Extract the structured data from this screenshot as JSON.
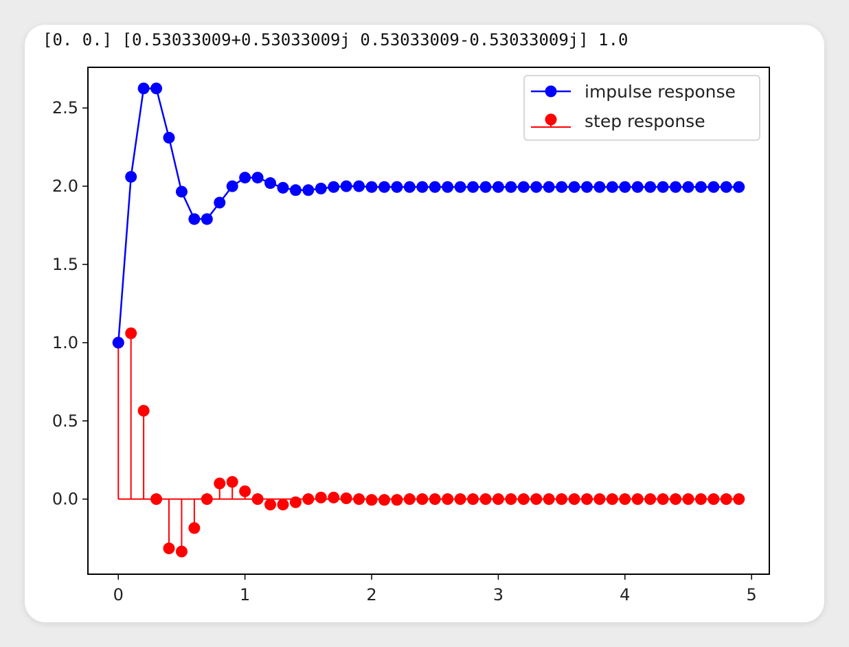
{
  "output_text": "[0. 0.] [0.53033009+0.53033009j 0.53033009-0.53033009j] 1.0",
  "chart_data": {
    "type": "line",
    "title": "",
    "xlabel": "",
    "ylabel": "",
    "xlim": [
      -0.24,
      5.14
    ],
    "ylim": [
      -0.48,
      2.76
    ],
    "grid": false,
    "legend_position": "top-right",
    "xticks": [
      0,
      1,
      2,
      3,
      4,
      5
    ],
    "xtick_labels": [
      "0",
      "1",
      "2",
      "3",
      "4",
      "5"
    ],
    "yticks": [
      0.0,
      0.5,
      1.0,
      1.5,
      2.0,
      2.5
    ],
    "ytick_labels": [
      "0.0",
      "0.5",
      "1.0",
      "1.5",
      "2.0",
      "2.5"
    ],
    "series": [
      {
        "name": "impulse response",
        "style": "line-marker",
        "color": "#0000ff",
        "x": [
          0.0,
          0.1,
          0.2,
          0.3,
          0.4,
          0.5,
          0.6,
          0.7,
          0.8,
          0.9,
          1.0,
          1.1,
          1.2,
          1.3,
          1.4,
          1.5,
          1.6,
          1.7,
          1.8,
          1.9,
          2.0,
          2.1,
          2.2,
          2.3,
          2.4,
          2.5,
          2.6,
          2.7,
          2.8,
          2.9,
          3.0,
          3.1,
          3.2,
          3.3,
          3.4,
          3.5,
          3.6,
          3.7,
          3.8,
          3.9,
          4.0,
          4.1,
          4.2,
          4.3,
          4.4,
          4.5,
          4.6,
          4.7,
          4.8,
          4.9
        ],
        "values": [
          1.0,
          2.06,
          2.625,
          2.625,
          2.31,
          1.965,
          1.79,
          1.79,
          1.895,
          2.0,
          2.055,
          2.055,
          2.02,
          1.99,
          1.975,
          1.975,
          1.985,
          1.995,
          2.0,
          2.0,
          1.995,
          1.995,
          1.995,
          1.995,
          1.995,
          1.995,
          1.995,
          1.995,
          1.995,
          1.995,
          1.995,
          1.995,
          1.995,
          1.995,
          1.995,
          1.995,
          1.995,
          1.995,
          1.995,
          1.995,
          1.995,
          1.995,
          1.995,
          1.995,
          1.995,
          1.995,
          1.995,
          1.995,
          1.995,
          1.995
        ]
      },
      {
        "name": "step response",
        "style": "stem",
        "color": "#ff0000",
        "x": [
          0.0,
          0.1,
          0.2,
          0.3,
          0.4,
          0.5,
          0.6,
          0.7,
          0.8,
          0.9,
          1.0,
          1.1,
          1.2,
          1.3,
          1.4,
          1.5,
          1.6,
          1.7,
          1.8,
          1.9,
          2.0,
          2.1,
          2.2,
          2.3,
          2.4,
          2.5,
          2.6,
          2.7,
          2.8,
          2.9,
          3.0,
          3.1,
          3.2,
          3.3,
          3.4,
          3.5,
          3.6,
          3.7,
          3.8,
          3.9,
          4.0,
          4.1,
          4.2,
          4.3,
          4.4,
          4.5,
          4.6,
          4.7,
          4.8,
          4.9
        ],
        "values": [
          1.0,
          1.06,
          0.565,
          0.0,
          -0.315,
          -0.335,
          -0.185,
          0.0,
          0.1,
          0.11,
          0.05,
          0.0,
          -0.035,
          -0.035,
          -0.02,
          0.0,
          0.01,
          0.01,
          0.005,
          0.0,
          -0.005,
          -0.005,
          -0.005,
          0.0,
          0.0,
          0.0,
          0.0,
          0.0,
          0.0,
          0.0,
          0.0,
          0.0,
          0.0,
          0.0,
          0.0,
          0.0,
          0.0,
          0.0,
          0.0,
          0.0,
          0.0,
          0.0,
          0.0,
          0.0,
          0.0,
          0.0,
          0.0,
          0.0,
          0.0,
          0.0
        ]
      }
    ]
  }
}
